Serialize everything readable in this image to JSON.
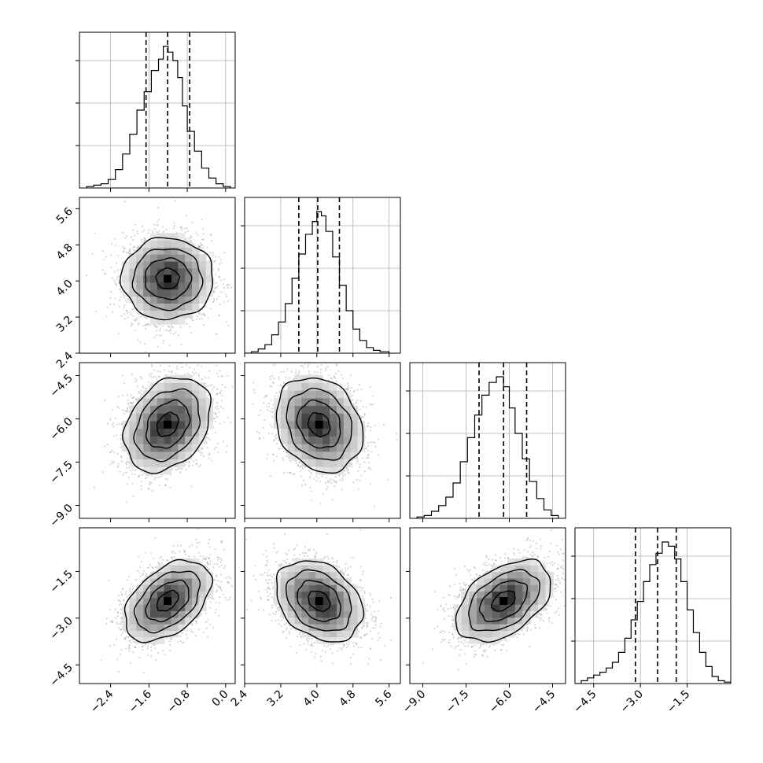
{
  "chart_data": {
    "type": "corner",
    "parameters": 4,
    "colors": {
      "line": "#000000",
      "density": "#000000",
      "samples": "#9a9a9a",
      "grid": "#b0b0b0"
    },
    "grid": true,
    "axes": [
      {
        "range": [
          -3.05,
          0.2
        ],
        "ticks": [
          -2.4,
          -1.6,
          -0.8,
          0.0
        ],
        "tick_labels": [
          "−2.4",
          "−1.6",
          "−0.8",
          "0.0"
        ]
      },
      {
        "range": [
          2.4,
          5.85
        ],
        "ticks": [
          2.4,
          3.2,
          4.0,
          4.8,
          5.6
        ],
        "tick_labels": [
          "2.4",
          "3.2",
          "4.0",
          "4.8",
          "5.6"
        ]
      },
      {
        "range": [
          -9.45,
          -4.05
        ],
        "ticks": [
          -9.0,
          -7.5,
          -6.0,
          -4.5
        ],
        "tick_labels": [
          "−9.0",
          "−7.5",
          "−6.0",
          "−4.5"
        ]
      },
      {
        "range": [
          -5.1,
          -0.1
        ],
        "ticks": [
          -4.5,
          -3.0,
          -1.5
        ],
        "tick_labels": [
          "−4.5",
          "−3.0",
          "−1.5"
        ]
      }
    ],
    "marginals": [
      {
        "param": 0,
        "edges": [
          -2.9,
          -2.75,
          -2.6,
          -2.45,
          -2.3,
          -2.15,
          -2.0,
          -1.85,
          -1.7,
          -1.55,
          -1.4,
          -1.3,
          -1.2,
          -1.1,
          -1.0,
          -0.9,
          -0.8,
          -0.65,
          -0.5,
          -0.35,
          -0.2,
          -0.05,
          0.1
        ],
        "counts": [
          0.01,
          0.02,
          0.03,
          0.06,
          0.13,
          0.24,
          0.38,
          0.55,
          0.68,
          0.83,
          0.91,
          1.0,
          0.96,
          0.9,
          0.78,
          0.58,
          0.4,
          0.26,
          0.14,
          0.07,
          0.03,
          0.01
        ],
        "quantiles": [
          -1.66,
          -1.21,
          -0.75
        ]
      },
      {
        "param": 1,
        "edges": [
          2.4,
          2.55,
          2.7,
          2.85,
          3.0,
          3.15,
          3.3,
          3.45,
          3.6,
          3.75,
          3.9,
          4.0,
          4.1,
          4.2,
          4.35,
          4.5,
          4.65,
          4.8,
          4.95,
          5.1,
          5.25,
          5.4,
          5.6
        ],
        "counts": [
          0.0,
          0.01,
          0.03,
          0.06,
          0.13,
          0.22,
          0.35,
          0.53,
          0.7,
          0.84,
          0.93,
          1.0,
          0.97,
          0.86,
          0.68,
          0.48,
          0.3,
          0.17,
          0.09,
          0.04,
          0.02,
          0.01
        ],
        "quantiles": [
          3.6,
          4.02,
          4.5
        ]
      },
      {
        "param": 2,
        "edges": [
          -9.2,
          -8.95,
          -8.7,
          -8.45,
          -8.2,
          -7.95,
          -7.7,
          -7.45,
          -7.2,
          -6.95,
          -6.7,
          -6.45,
          -6.2,
          -6.0,
          -5.8,
          -5.55,
          -5.3,
          -5.05,
          -4.8,
          -4.55,
          -4.3
        ],
        "counts": [
          0.01,
          0.02,
          0.05,
          0.09,
          0.15,
          0.25,
          0.4,
          0.57,
          0.73,
          0.87,
          0.96,
          1.0,
          0.93,
          0.78,
          0.6,
          0.42,
          0.26,
          0.14,
          0.06,
          0.02
        ],
        "quantiles": [
          -7.05,
          -6.2,
          -5.4
        ]
      },
      {
        "param": 3,
        "edges": [
          -5.1,
          -4.9,
          -4.7,
          -4.5,
          -4.3,
          -4.1,
          -3.9,
          -3.7,
          -3.5,
          -3.3,
          -3.1,
          -2.9,
          -2.7,
          -2.5,
          -2.3,
          -2.1,
          -1.9,
          -1.7,
          -1.5,
          -1.3,
          -1.1,
          -0.9,
          -0.7,
          -0.5,
          -0.3,
          -0.1
        ],
        "counts": [
          0.0,
          0.02,
          0.04,
          0.06,
          0.08,
          0.11,
          0.15,
          0.22,
          0.32,
          0.45,
          0.58,
          0.72,
          0.84,
          0.92,
          1.0,
          0.97,
          0.88,
          0.72,
          0.52,
          0.36,
          0.22,
          0.12,
          0.05,
          0.02,
          0.01
        ],
        "quantiles": [
          -3.16,
          -2.45,
          -1.85
        ]
      }
    ],
    "joint": [
      {
        "x": 0,
        "y": 1,
        "mean": [
          -1.21,
          4.05
        ],
        "sd": [
          0.45,
          0.48
        ],
        "corr": 0.0
      },
      {
        "x": 0,
        "y": 2,
        "mean": [
          -1.21,
          -6.2
        ],
        "sd": [
          0.45,
          0.82
        ],
        "corr": 0.3
      },
      {
        "x": 0,
        "y": 3,
        "mean": [
          -1.21,
          -2.45
        ],
        "sd": [
          0.45,
          0.65
        ],
        "corr": 0.45
      },
      {
        "x": 1,
        "y": 2,
        "mean": [
          4.05,
          -6.2
        ],
        "sd": [
          0.48,
          0.82
        ],
        "corr": -0.2
      },
      {
        "x": 1,
        "y": 3,
        "mean": [
          4.05,
          -2.45
        ],
        "sd": [
          0.48,
          0.65
        ],
        "corr": -0.3
      },
      {
        "x": 2,
        "y": 3,
        "mean": [
          -6.2,
          -2.45
        ],
        "sd": [
          0.82,
          0.65
        ],
        "corr": 0.45
      }
    ],
    "contour_levels_sigma": [
      0.5,
      1.0,
      1.5,
      2.0
    ]
  }
}
